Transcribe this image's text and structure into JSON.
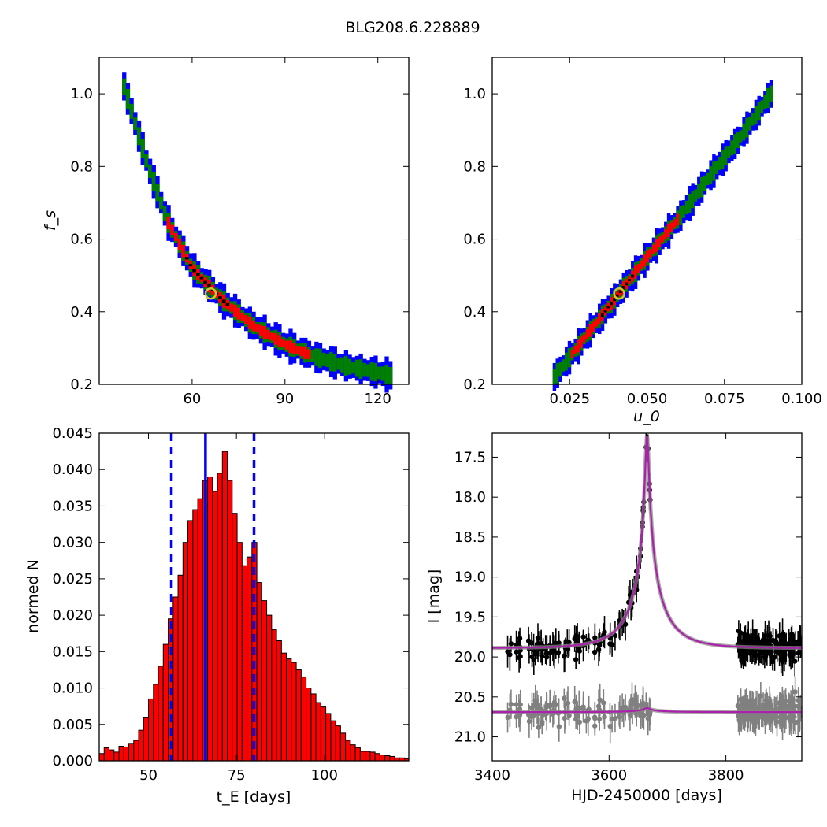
{
  "figure": {
    "title": "BLG208.6.228889"
  },
  "chart_data": [
    {
      "type": "scatter",
      "subtype": "2d-density",
      "x_tick_labels": [
        "60",
        "90",
        "120"
      ],
      "x_ticks": [
        60,
        90,
        120
      ],
      "y_tick_labels": [
        "0.2",
        "0.4",
        "0.6",
        "0.8",
        "1.0"
      ],
      "y_ticks": [
        0.2,
        0.4,
        0.6,
        0.8,
        1.0
      ],
      "xlim": [
        30,
        130
      ],
      "ylim": [
        0.2,
        1.1
      ],
      "xlabel": "",
      "ylabel": "f_s",
      "density_levels": [
        {
          "color": "#0000ff",
          "halfwidth": 0.032
        },
        {
          "color": "#008000",
          "halfwidth": 0.022
        },
        {
          "color": "#ff0000",
          "halfwidth": 0.014
        },
        {
          "color": "#000000",
          "halfwidth": 0.004
        }
      ],
      "ridge": {
        "x": [
          38,
          45,
          52,
          60,
          70,
          80,
          90,
          100,
          110,
          124
        ],
        "y": [
          1.02,
          0.82,
          0.65,
          0.52,
          0.43,
          0.36,
          0.31,
          0.275,
          0.25,
          0.225
        ]
      },
      "red_range_x": [
        52,
        98
      ],
      "black_range_x": [
        58,
        72
      ],
      "best_fit": {
        "x": 66,
        "y": 0.45,
        "color": "#c8c832"
      }
    },
    {
      "type": "scatter",
      "subtype": "2d-density",
      "x_tick_labels": [
        "0.025",
        "0.050",
        "0.075",
        "0.100"
      ],
      "x_ticks": [
        0.025,
        0.05,
        0.075,
        0.1
      ],
      "y_tick_labels": [
        "0.2",
        "0.4",
        "0.6",
        "0.8",
        "1.0"
      ],
      "y_ticks": [
        0.2,
        0.4,
        0.6,
        0.8,
        1.0
      ],
      "xlim": [
        0.0,
        0.1
      ],
      "ylim": [
        0.2,
        1.1
      ],
      "xlabel": "u_0",
      "ylabel": "",
      "ridge": {
        "x": [
          0.02,
          0.03,
          0.04,
          0.05,
          0.06,
          0.07,
          0.08,
          0.09
        ],
        "y": [
          0.22,
          0.33,
          0.44,
          0.55,
          0.655,
          0.77,
          0.88,
          1.0
        ]
      },
      "red_range_x": [
        0.025,
        0.06
      ],
      "black_range_x": [
        0.035,
        0.046
      ],
      "best_fit": {
        "x": 0.041,
        "y": 0.45,
        "color": "#c8c832"
      }
    },
    {
      "type": "bar",
      "subtype": "histogram",
      "x_tick_labels": [
        "50",
        "75",
        "100"
      ],
      "x_ticks": [
        50,
        75,
        100
      ],
      "y_tick_labels": [
        "0.000",
        "0.005",
        "0.010",
        "0.015",
        "0.020",
        "0.025",
        "0.030",
        "0.035",
        "0.040",
        "0.045"
      ],
      "y_ticks": [
        0,
        0.005,
        0.01,
        0.015,
        0.02,
        0.025,
        0.03,
        0.035,
        0.04,
        0.045
      ],
      "xlim": [
        36,
        124
      ],
      "ylim": [
        0,
        0.045
      ],
      "xlabel": "t_E [days]",
      "ylabel": "normed N",
      "bin_start": 36,
      "bin_width": 1.4,
      "values": [
        0.001,
        0.0018,
        0.0015,
        0.0012,
        0.002,
        0.0019,
        0.0024,
        0.0028,
        0.0042,
        0.006,
        0.0085,
        0.0105,
        0.013,
        0.016,
        0.0195,
        0.0225,
        0.0255,
        0.03,
        0.033,
        0.0345,
        0.036,
        0.0385,
        0.039,
        0.037,
        0.0395,
        0.0425,
        0.0385,
        0.034,
        0.03,
        0.0268,
        0.028,
        0.03,
        0.0245,
        0.022,
        0.02,
        0.018,
        0.0165,
        0.0148,
        0.014,
        0.0135,
        0.0125,
        0.0115,
        0.01,
        0.0092,
        0.008,
        0.0074,
        0.0065,
        0.0055,
        0.0048,
        0.0038,
        0.0028,
        0.0022,
        0.0018,
        0.0013,
        0.0013,
        0.0012,
        0.001,
        0.0008,
        0.0007,
        0.0006,
        0.0004,
        0.0004,
        0.0003,
        0.0002
      ],
      "bar_color": "#ff0000",
      "vlines": [
        {
          "x": 66.2,
          "color": "#0000ff",
          "style": "solid"
        },
        {
          "x": 56.5,
          "color": "#0000ff",
          "style": "dashed"
        },
        {
          "x": 80.0,
          "color": "#0000ff",
          "style": "dashed"
        }
      ]
    },
    {
      "type": "line",
      "subtype": "light-curve",
      "x_tick_labels": [
        "3400",
        "3600",
        "3800"
      ],
      "x_ticks": [
        3400,
        3600,
        3800
      ],
      "y_tick_labels": [
        "17.5",
        "18.0",
        "18.5",
        "19.0",
        "19.5",
        "20.0",
        "20.5",
        "21.0"
      ],
      "y_ticks": [
        17.5,
        18.0,
        18.5,
        19.0,
        19.5,
        20.0,
        20.5,
        21.0
      ],
      "xlim": [
        3400,
        3930
      ],
      "ylim": [
        21.3,
        17.2
      ],
      "y_inverted": true,
      "xlabel": "HJD-2450000 [days]",
      "ylabel": "I [mag]",
      "model": {
        "t0": 3665,
        "tE": 66,
        "u0": 0.041,
        "fs": 0.45,
        "baseline": 19.89,
        "diff_baseline": 20.69
      },
      "series": [
        {
          "color": "#000000",
          "x_range": [
            3425,
            3930
          ],
          "baseline": 19.89
        },
        {
          "color": "#808080",
          "x_range": [
            3425,
            3930
          ],
          "baseline": 20.69
        }
      ],
      "model_color": "#aa22aa"
    }
  ]
}
